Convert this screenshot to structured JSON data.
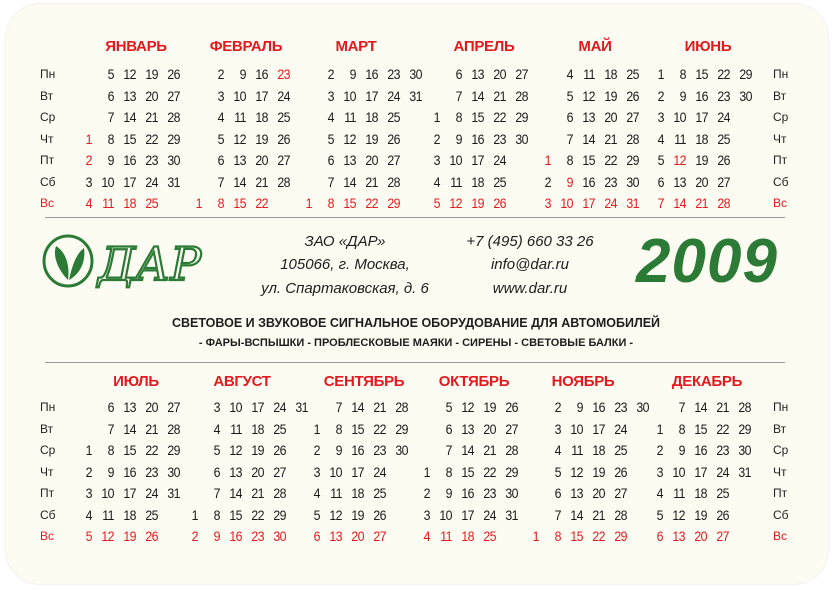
{
  "weekdays": [
    "Пн",
    "Вт",
    "Ср",
    "Чт",
    "Пт",
    "Сб",
    "Вс"
  ],
  "colors": {
    "red": "#e3191f",
    "green": "#2b7a35",
    "text": "#1d1d1d",
    "card": "#fdfcf2"
  },
  "logo": {
    "text": "ДАР",
    "icon": "leaf-in-circle-icon"
  },
  "company": {
    "name": "ЗАО «ДАР»",
    "address_line1": "105066, г. Москва,",
    "address_line2": "ул. Спартаковская, д. 6",
    "phone": "+7 (495) 660 33 26",
    "email": "info@dar.ru",
    "website": "www.dar.ru"
  },
  "year": "2009",
  "tagline": "СВЕТОВОЕ И ЗВУКОВОЕ СИГНАЛЬНОЕ ОБОРУДОВАНИЕ ДЛЯ АВТОМОБИЛЕЙ",
  "products": "- ФАРЫ-ВСПЫШКИ - ПРОБЛЕСКОВЫЕ МАЯКИ - СИРЕНЫ - СВЕТОВЫЕ БАЛКИ -",
  "months": [
    {
      "name": "ЯНВАРЬ",
      "holidays": [
        1,
        2
      ],
      "rows": [
        [
          null,
          5,
          12,
          19,
          26
        ],
        [
          null,
          6,
          13,
          20,
          27
        ],
        [
          null,
          7,
          14,
          21,
          28
        ],
        [
          1,
          8,
          15,
          22,
          29
        ],
        [
          2,
          9,
          16,
          23,
          30
        ],
        [
          3,
          10,
          17,
          24,
          31
        ],
        [
          4,
          11,
          18,
          25
        ]
      ]
    },
    {
      "name": "ФЕВРАЛЬ",
      "holidays": [
        23
      ],
      "rows": [
        [
          null,
          2,
          9,
          16,
          23
        ],
        [
          null,
          3,
          10,
          17,
          24
        ],
        [
          null,
          4,
          11,
          18,
          25
        ],
        [
          null,
          5,
          12,
          19,
          26
        ],
        [
          null,
          6,
          13,
          20,
          27
        ],
        [
          null,
          7,
          14,
          21,
          28
        ],
        [
          1,
          8,
          15,
          22
        ]
      ]
    },
    {
      "name": "МАРТ",
      "holidays": [],
      "rows": [
        [
          null,
          2,
          9,
          16,
          23,
          30
        ],
        [
          null,
          3,
          10,
          17,
          24,
          31
        ],
        [
          null,
          4,
          11,
          18,
          25
        ],
        [
          null,
          5,
          12,
          19,
          26
        ],
        [
          null,
          6,
          13,
          20,
          27
        ],
        [
          null,
          7,
          14,
          21,
          28
        ],
        [
          1,
          8,
          15,
          22,
          29
        ]
      ]
    },
    {
      "name": "АПРЕЛЬ",
      "holidays": [],
      "rows": [
        [
          null,
          6,
          13,
          20,
          27
        ],
        [
          null,
          7,
          14,
          21,
          28
        ],
        [
          1,
          8,
          15,
          22,
          29
        ],
        [
          2,
          9,
          16,
          23,
          30
        ],
        [
          3,
          10,
          17,
          24
        ],
        [
          4,
          11,
          18,
          25
        ],
        [
          5,
          12,
          19,
          26
        ]
      ]
    },
    {
      "name": "МАЙ",
      "holidays": [
        1,
        9
      ],
      "rows": [
        [
          null,
          4,
          11,
          18,
          25
        ],
        [
          null,
          5,
          12,
          19,
          26
        ],
        [
          null,
          6,
          13,
          20,
          27
        ],
        [
          null,
          7,
          14,
          21,
          28
        ],
        [
          1,
          8,
          15,
          22,
          29
        ],
        [
          2,
          9,
          16,
          23,
          30
        ],
        [
          3,
          10,
          17,
          24,
          31
        ]
      ]
    },
    {
      "name": "ИЮНЬ",
      "holidays": [
        12
      ],
      "rows": [
        [
          1,
          8,
          15,
          22,
          29
        ],
        [
          2,
          9,
          16,
          23,
          30
        ],
        [
          3,
          10,
          17,
          24
        ],
        [
          4,
          11,
          18,
          25
        ],
        [
          5,
          12,
          19,
          26
        ],
        [
          6,
          13,
          20,
          27
        ],
        [
          7,
          14,
          21,
          28
        ]
      ]
    },
    {
      "name": "ИЮЛЬ",
      "holidays": [],
      "rows": [
        [
          null,
          6,
          13,
          20,
          27
        ],
        [
          null,
          7,
          14,
          21,
          28
        ],
        [
          1,
          8,
          15,
          22,
          29
        ],
        [
          2,
          9,
          16,
          23,
          30
        ],
        [
          3,
          10,
          17,
          24,
          31
        ],
        [
          4,
          11,
          18,
          25
        ],
        [
          5,
          12,
          19,
          26
        ]
      ]
    },
    {
      "name": "АВГУСТ",
      "holidays": [],
      "rows": [
        [
          null,
          3,
          10,
          17,
          24,
          31
        ],
        [
          null,
          4,
          11,
          18,
          25
        ],
        [
          null,
          5,
          12,
          19,
          26
        ],
        [
          null,
          6,
          13,
          20,
          27
        ],
        [
          null,
          7,
          14,
          21,
          28
        ],
        [
          1,
          8,
          15,
          22,
          29
        ],
        [
          2,
          9,
          16,
          23,
          30
        ]
      ]
    },
    {
      "name": "СЕНТЯБРЬ",
      "holidays": [],
      "rows": [
        [
          null,
          7,
          14,
          21,
          28
        ],
        [
          1,
          8,
          15,
          22,
          29
        ],
        [
          2,
          9,
          16,
          23,
          30
        ],
        [
          3,
          10,
          17,
          24
        ],
        [
          4,
          11,
          18,
          25
        ],
        [
          5,
          12,
          19,
          26
        ],
        [
          6,
          13,
          20,
          27
        ]
      ]
    },
    {
      "name": "ОКТЯБРЬ",
      "holidays": [],
      "rows": [
        [
          null,
          5,
          12,
          19,
          26
        ],
        [
          null,
          6,
          13,
          20,
          27
        ],
        [
          null,
          7,
          14,
          21,
          28
        ],
        [
          1,
          8,
          15,
          22,
          29
        ],
        [
          2,
          9,
          16,
          23,
          30
        ],
        [
          3,
          10,
          17,
          24,
          31
        ],
        [
          4,
          11,
          18,
          25
        ]
      ]
    },
    {
      "name": "НОЯБРЬ",
      "holidays": [],
      "rows": [
        [
          null,
          2,
          9,
          16,
          23,
          30
        ],
        [
          null,
          3,
          10,
          17,
          24
        ],
        [
          null,
          4,
          11,
          18,
          25
        ],
        [
          null,
          5,
          12,
          19,
          26
        ],
        [
          null,
          6,
          13,
          20,
          27
        ],
        [
          null,
          7,
          14,
          21,
          28
        ],
        [
          1,
          8,
          15,
          22,
          29
        ]
      ]
    },
    {
      "name": "ДЕКАБРЬ",
      "holidays": [],
      "rows": [
        [
          null,
          7,
          14,
          21,
          28
        ],
        [
          1,
          8,
          15,
          22,
          29
        ],
        [
          2,
          9,
          16,
          23,
          30
        ],
        [
          3,
          10,
          17,
          24,
          31
        ],
        [
          4,
          11,
          18,
          25
        ],
        [
          5,
          12,
          19,
          26
        ],
        [
          6,
          13,
          20,
          27
        ]
      ]
    }
  ]
}
